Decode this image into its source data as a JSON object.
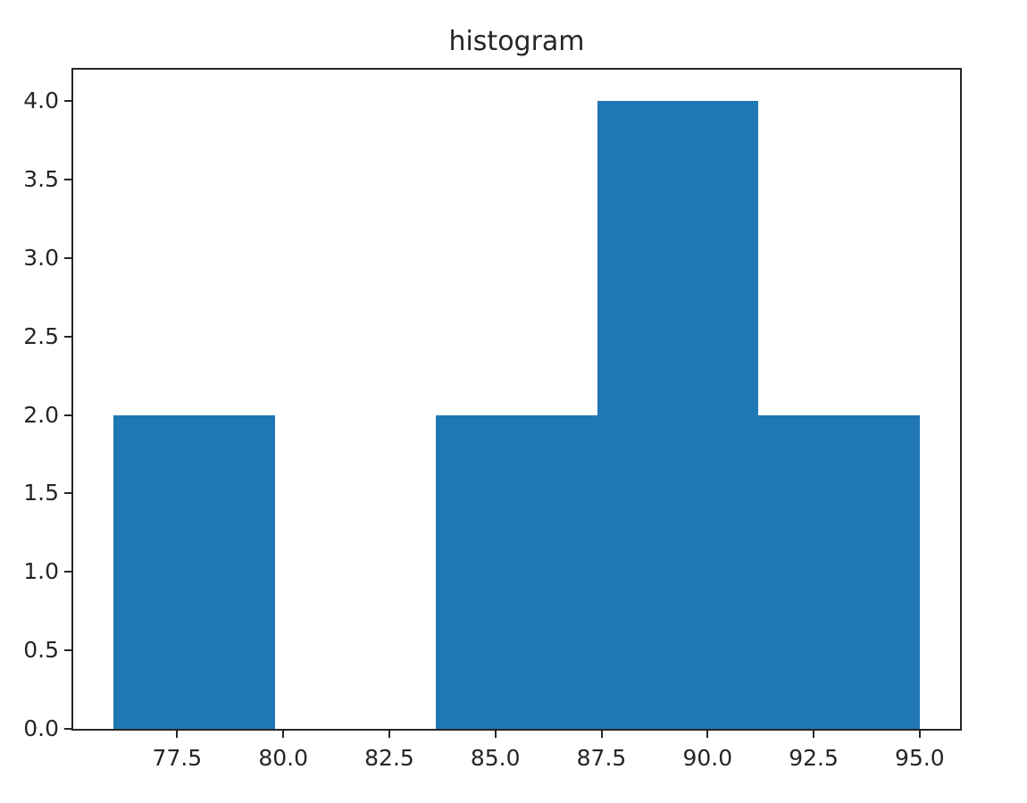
{
  "chart_data": {
    "type": "bar",
    "subtype": "histogram",
    "title": "histogram",
    "xlabel": "",
    "ylabel": "",
    "bin_edges": [
      76.0,
      79.8,
      83.6,
      87.4,
      91.2,
      95.0
    ],
    "counts": [
      2,
      0,
      2,
      4,
      2
    ],
    "xlim": [
      75.05,
      95.95
    ],
    "ylim": [
      0,
      4.2
    ],
    "x_ticks": [
      77.5,
      80.0,
      82.5,
      85.0,
      87.5,
      90.0,
      92.5,
      95.0
    ],
    "x_tick_labels": [
      "77.5",
      "80.0",
      "82.5",
      "85.0",
      "87.5",
      "90.0",
      "92.5",
      "95.0"
    ],
    "y_ticks": [
      0.0,
      0.5,
      1.0,
      1.5,
      2.0,
      2.5,
      3.0,
      3.5,
      4.0
    ],
    "y_tick_labels": [
      "0.0",
      "0.5",
      "1.0",
      "1.5",
      "2.0",
      "2.5",
      "3.0",
      "3.5",
      "4.0"
    ],
    "grid": false,
    "legend": null,
    "bar_color": "#1f77b4",
    "axis_color": "#262626",
    "background_color": "#ffffff"
  }
}
